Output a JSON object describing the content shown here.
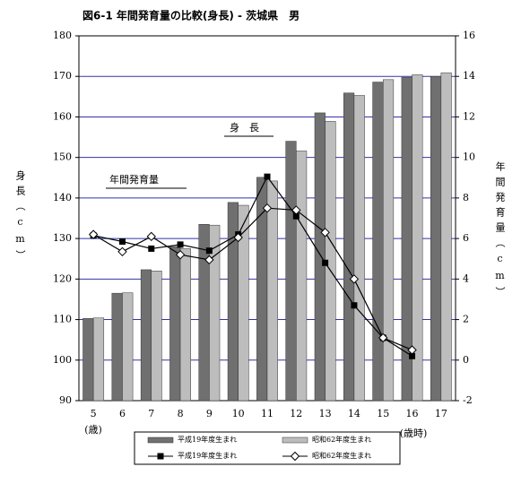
{
  "chart_data": {
    "type": "bar",
    "title": "図6-1 年間発育量の比較(身長) - 茨城県　男",
    "y_label": "身長（cm）",
    "y2_label": "年間発育量（cm）",
    "annotation_height": "身　長",
    "annotation_growth": "年間発育量",
    "x_unit_first": "(歳)",
    "x_unit_last": "(歳時)",
    "categories": [
      "5",
      "6",
      "7",
      "8",
      "9",
      "10",
      "11",
      "12",
      "13",
      "14",
      "15",
      "16",
      "17"
    ],
    "series": [
      {
        "name": "平成19年度生まれ",
        "type": "bar",
        "color": "#707070",
        "values": [
          110.3,
          116.5,
          122.3,
          128.0,
          133.5,
          138.9,
          145.1,
          154.0,
          161.0,
          165.9,
          168.6,
          169.8,
          170.0
        ]
      },
      {
        "name": "昭和62年度生まれ",
        "type": "bar",
        "color": "#bdbdbd",
        "values": [
          110.4,
          116.6,
          122.0,
          127.5,
          133.3,
          138.2,
          144.2,
          151.6,
          158.9,
          165.3,
          169.2,
          170.4,
          170.9
        ]
      },
      {
        "name": "平成19年度生まれ",
        "type": "line",
        "marker": "square",
        "axis": "y2",
        "color": "#000000",
        "values": [
          6.15,
          5.85,
          5.5,
          5.7,
          5.4,
          6.2,
          9.05,
          7.1,
          4.8,
          2.7,
          1.1,
          0.2,
          null
        ]
      },
      {
        "name": "昭和62年度生まれ",
        "type": "line",
        "marker": "diamond",
        "axis": "y2",
        "color": "#000000",
        "values": [
          6.2,
          5.35,
          6.1,
          5.2,
          4.95,
          6.05,
          7.5,
          7.4,
          6.3,
          4.0,
          1.1,
          0.5,
          null
        ]
      }
    ],
    "ylim": [
      90,
      180
    ],
    "yticks": [
      90,
      100,
      110,
      120,
      130,
      140,
      150,
      160,
      170,
      180
    ],
    "y2lim": [
      -2,
      16
    ],
    "y2ticks": [
      -2,
      0,
      2,
      4,
      6,
      8,
      10,
      12,
      14,
      16
    ],
    "grid": true,
    "grid_color": "#3333aa"
  }
}
